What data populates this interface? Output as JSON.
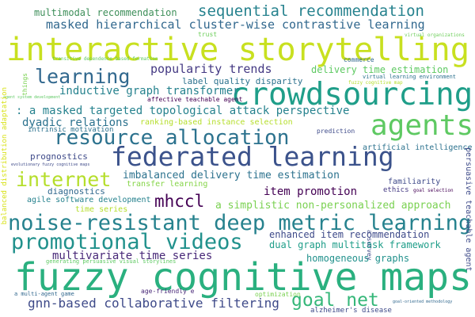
{
  "word_cloud": {
    "background": "#ffffff",
    "words": [
      {
        "text": "fuzzy cognitive maps",
        "color": "#2ab07f"
      },
      {
        "text": "interactive storytelling",
        "color": "#c8e020"
      },
      {
        "text": "crowdsourcing",
        "color": "#1f9e89"
      },
      {
        "text": "federated learning",
        "color": "#3b528b"
      },
      {
        "text": "agents",
        "color": "#5ec962"
      },
      {
        "text": "noise-resistant deep metric learning",
        "color": "#26828e"
      },
      {
        "text": "promotional videos",
        "color": "#21918c"
      },
      {
        "text": "resource allocation",
        "color": "#2c728e"
      },
      {
        "text": "internet",
        "color": "#b5de2b"
      },
      {
        "text": "learning",
        "color": "#31688e"
      },
      {
        "text": "sequential recommendation",
        "color": "#26828e"
      },
      {
        "text": "masked hierarchical cluster-wise contrastive learning",
        "color": "#31688e"
      },
      {
        "text": "goal net",
        "color": "#35b779"
      },
      {
        "text": "mhccl",
        "color": "#440154"
      },
      {
        "text": "gnn-based collaborative filtering",
        "color": "#3e4a89"
      },
      {
        "text": "multimodal recommendation",
        "color": "#3e8f5a"
      },
      {
        "text": "popularity trends",
        "color": "#443983"
      },
      {
        "text": ": a masked targeted topological attack perspective",
        "color": "#26828e"
      },
      {
        "text": "dyadic relations",
        "color": "#2c728e"
      },
      {
        "text": "inductive graph transformer",
        "color": "#26828e"
      },
      {
        "text": "imbalanced delivery time estimation",
        "color": "#2c728e"
      },
      {
        "text": "item promotion",
        "color": "#440154"
      },
      {
        "text": "a simplistic non-personalized approach",
        "color": "#7ad151"
      },
      {
        "text": "multivariate time series",
        "color": "#482878"
      },
      {
        "text": "enhanced item recommendation",
        "color": "#3e4a89"
      },
      {
        "text": "dual graph multitask framework",
        "color": "#1f9e89"
      },
      {
        "text": "homogeneous graphs",
        "color": "#21918c"
      },
      {
        "text": "delivery time estimation",
        "color": "#5ec962"
      },
      {
        "text": "label quality disparity",
        "color": "#2c728e"
      },
      {
        "text": "ranking-based instance selection",
        "color": "#b5de2b"
      },
      {
        "text": "artificial intelligence",
        "color": "#2c728e"
      },
      {
        "text": "prognostics",
        "color": "#3e4a89"
      },
      {
        "text": "diagnostics",
        "color": "#31688e"
      },
      {
        "text": "agile software development",
        "color": "#26828e"
      },
      {
        "text": "transfer learning",
        "color": "#86d549"
      },
      {
        "text": "time series",
        "color": "#b5de2b"
      },
      {
        "text": "familiarity",
        "color": "#3e4a89"
      },
      {
        "text": "ethics",
        "color": "#443983"
      },
      {
        "text": "optimization",
        "color": "#7ad151"
      },
      {
        "text": "alzheimer's disease",
        "color": "#3e4a89"
      },
      {
        "text": "age-friendly e",
        "color": "#482878"
      },
      {
        "text": "a multi-agent game",
        "color": "#31688e"
      },
      {
        "text": "generating persuasive visual storylines",
        "color": "#5ec962"
      },
      {
        "text": "intrinsic motivation",
        "color": "#2c728e"
      },
      {
        "text": "affective teachable agent",
        "color": "#440154"
      },
      {
        "text": "prediction",
        "color": "#3e4a89"
      },
      {
        "text": "commerce",
        "color": "#31688e"
      },
      {
        "text": "trust",
        "color": "#6cce59"
      },
      {
        "text": "virtual organizations",
        "color": "#6cce59"
      },
      {
        "text": "transitive dependence based formation",
        "color": "#5ec962"
      },
      {
        "text": "things",
        "color": "#7ad151"
      },
      {
        "text": "agent system development",
        "color": "#5ec962"
      },
      {
        "text": "virtual learning environment",
        "color": "#2c728e"
      },
      {
        "text": "fuzzy cognitive map",
        "color": "#b5de2b"
      },
      {
        "text": "goal selection",
        "color": "#440154"
      },
      {
        "text": "evolutionary fuzzy cognitive maps",
        "color": "#3e4a89"
      },
      {
        "text": "goal-oriented methodology",
        "color": "#31688e"
      },
      {
        "text": "a survey",
        "color": "#3e4a89"
      },
      {
        "text": "balanced distribution adaptation",
        "color": "#d8e219"
      },
      {
        "text": "persuasive teachable agent",
        "color": "#3e4a89"
      }
    ]
  }
}
